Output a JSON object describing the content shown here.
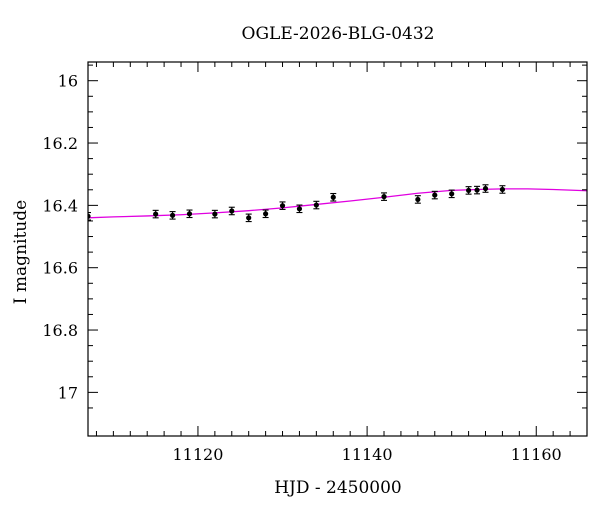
{
  "chart_data": {
    "type": "scatter",
    "title": "OGLE-2026-BLG-0432",
    "xlabel": "HJD - 2450000",
    "ylabel": "I magnitude",
    "xlim": [
      11107,
      11166
    ],
    "ylim": [
      17.14,
      15.94
    ],
    "y_inverted": true,
    "x_ticks": [
      11120,
      11140,
      11160
    ],
    "x_tick_labels": [
      "11120",
      "11140",
      "11160"
    ],
    "y_ticks": [
      16,
      16.2,
      16.4,
      16.6,
      16.8,
      17
    ],
    "y_tick_labels": [
      "16",
      "16.2",
      "16.4",
      "16.6",
      "16.8",
      "17"
    ],
    "grid": false,
    "series": [
      {
        "kind": "points_with_errorbars",
        "color": "#000000",
        "points": [
          {
            "x": 11107.0,
            "y": 16.435,
            "err": 0.012
          },
          {
            "x": 11115.0,
            "y": 16.428,
            "err": 0.012
          },
          {
            "x": 11117.0,
            "y": 16.432,
            "err": 0.012
          },
          {
            "x": 11119.0,
            "y": 16.427,
            "err": 0.012
          },
          {
            "x": 11122.0,
            "y": 16.428,
            "err": 0.012
          },
          {
            "x": 11124.0,
            "y": 16.418,
            "err": 0.012
          },
          {
            "x": 11126.0,
            "y": 16.44,
            "err": 0.012
          },
          {
            "x": 11128.0,
            "y": 16.427,
            "err": 0.012
          },
          {
            "x": 11130.0,
            "y": 16.401,
            "err": 0.012
          },
          {
            "x": 11132.0,
            "y": 16.411,
            "err": 0.012
          },
          {
            "x": 11134.0,
            "y": 16.399,
            "err": 0.012
          },
          {
            "x": 11136.0,
            "y": 16.374,
            "err": 0.012
          },
          {
            "x": 11142.0,
            "y": 16.372,
            "err": 0.012
          },
          {
            "x": 11146.0,
            "y": 16.381,
            "err": 0.012
          },
          {
            "x": 11148.0,
            "y": 16.367,
            "err": 0.012
          },
          {
            "x": 11150.0,
            "y": 16.363,
            "err": 0.012
          },
          {
            "x": 11152.0,
            "y": 16.352,
            "err": 0.012
          },
          {
            "x": 11153.0,
            "y": 16.351,
            "err": 0.012
          },
          {
            "x": 11154.0,
            "y": 16.346,
            "err": 0.012
          },
          {
            "x": 11156.0,
            "y": 16.349,
            "err": 0.012
          }
        ]
      },
      {
        "kind": "model_line",
        "color": "#e000e0",
        "points": [
          [
            11107,
            16.44
          ],
          [
            11110,
            16.437
          ],
          [
            11114,
            16.434
          ],
          [
            11118,
            16.43
          ],
          [
            11122,
            16.424
          ],
          [
            11126,
            16.417
          ],
          [
            11130,
            16.408
          ],
          [
            11134,
            16.397
          ],
          [
            11138,
            16.386
          ],
          [
            11142,
            16.374
          ],
          [
            11146,
            16.361
          ],
          [
            11150,
            16.352
          ],
          [
            11153,
            16.349
          ],
          [
            11156,
            16.347
          ],
          [
            11159,
            16.347
          ],
          [
            11162,
            16.349
          ],
          [
            11166,
            16.353
          ]
        ]
      }
    ]
  }
}
